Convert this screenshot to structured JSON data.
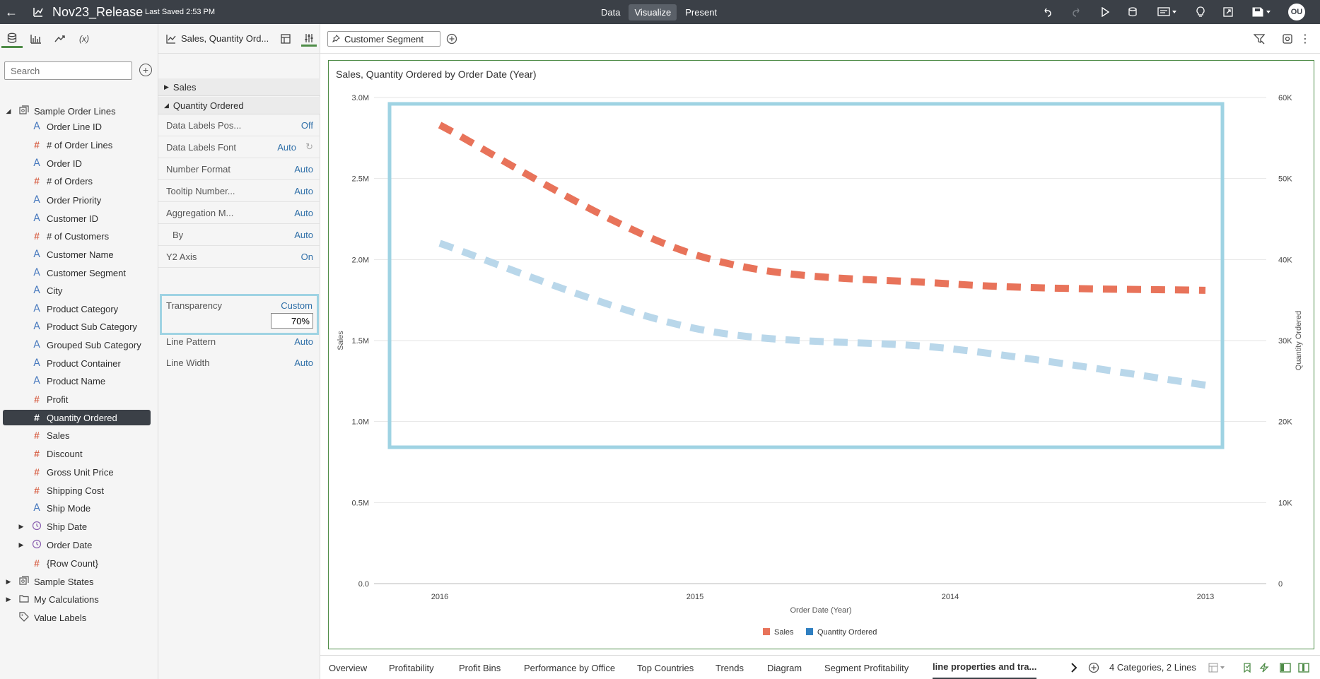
{
  "topbar": {
    "title": "Nov23_Release",
    "last_saved": "Last Saved 2:53 PM",
    "modes": [
      "Data",
      "Visualize",
      "Present"
    ],
    "active_mode": "Visualize",
    "avatar": "OU"
  },
  "left_panel": {
    "search_placeholder": "Search",
    "tree": [
      {
        "label": "Sample Order Lines",
        "kind": "dataset",
        "level": 0,
        "caret": "open"
      },
      {
        "label": "Order Line ID",
        "kind": "attr",
        "level": 1
      },
      {
        "label": "# of Order Lines",
        "kind": "meas",
        "level": 1
      },
      {
        "label": "Order ID",
        "kind": "attr",
        "level": 1
      },
      {
        "label": "# of Orders",
        "kind": "meas",
        "level": 1
      },
      {
        "label": "Order Priority",
        "kind": "attr",
        "level": 1
      },
      {
        "label": "Customer ID",
        "kind": "attr",
        "level": 1
      },
      {
        "label": "# of Customers",
        "kind": "meas",
        "level": 1
      },
      {
        "label": "Customer Name",
        "kind": "attr",
        "level": 1
      },
      {
        "label": "Customer Segment",
        "kind": "attr",
        "level": 1
      },
      {
        "label": "City",
        "kind": "attr",
        "level": 1
      },
      {
        "label": "Product Category",
        "kind": "attr",
        "level": 1
      },
      {
        "label": "Product Sub Category",
        "kind": "attr",
        "level": 1
      },
      {
        "label": "Grouped Sub Category",
        "kind": "attr",
        "level": 1
      },
      {
        "label": "Product Container",
        "kind": "attr",
        "level": 1
      },
      {
        "label": "Product Name",
        "kind": "attr",
        "level": 1
      },
      {
        "label": "Profit",
        "kind": "meas",
        "level": 1
      },
      {
        "label": "Quantity Ordered",
        "kind": "meas",
        "level": 1,
        "selected": true
      },
      {
        "label": "Sales",
        "kind": "meas",
        "level": 1
      },
      {
        "label": "Discount",
        "kind": "meas",
        "level": 1
      },
      {
        "label": "Gross Unit Price",
        "kind": "meas",
        "level": 1
      },
      {
        "label": "Shipping Cost",
        "kind": "meas",
        "level": 1
      },
      {
        "label": "Ship Mode",
        "kind": "attr",
        "level": 1
      },
      {
        "label": "Ship Date",
        "kind": "date",
        "level": 1,
        "caret": "closed"
      },
      {
        "label": "Order Date",
        "kind": "date",
        "level": 1,
        "caret": "closed"
      },
      {
        "label": "{Row Count}",
        "kind": "meas",
        "level": 1
      },
      {
        "label": "Sample States",
        "kind": "dataset",
        "level": 0,
        "caret": "closed"
      },
      {
        "label": "My Calculations",
        "kind": "folder",
        "level": 0,
        "caret": "closed"
      },
      {
        "label": "Value Labels",
        "kind": "tag",
        "level": 0
      }
    ]
  },
  "properties": {
    "viz_name": "Sales, Quantity Ord...",
    "sections": {
      "sales": "Sales",
      "quantity": "Quantity Ordered"
    },
    "rows": [
      {
        "key": "Data Labels Pos...",
        "value": "Off"
      },
      {
        "key": "Data Labels Font",
        "value": "Auto"
      },
      {
        "key": "Number Format",
        "value": "Auto"
      },
      {
        "key": "Tooltip Number...",
        "value": "Auto"
      },
      {
        "key": "Aggregation M...",
        "value": "Auto"
      },
      {
        "key": "By",
        "value": "Auto"
      },
      {
        "key": "Y2 Axis",
        "value": "On"
      }
    ],
    "transparency": {
      "key": "Transparency",
      "value": "Custom",
      "input": "70%"
    },
    "rows_after": [
      {
        "key": "Line Pattern",
        "value": "Auto"
      },
      {
        "key": "Line Width",
        "value": "Auto"
      }
    ]
  },
  "filter_bar": {
    "pill": "Customer Segment"
  },
  "chart_data": {
    "type": "line",
    "title": "Sales, Quantity Ordered by Order Date (Year)",
    "xlabel": "Order Date (Year)",
    "ylabel": "Sales",
    "y2label": "Quantity Ordered",
    "categories": [
      "2016",
      "2015",
      "2014",
      "2013"
    ],
    "ylim": [
      0,
      3000000
    ],
    "y2lim": [
      0,
      60000
    ],
    "yticks": [
      "0.0",
      "0.5M",
      "1.0M",
      "1.5M",
      "2.0M",
      "2.5M",
      "3.0M"
    ],
    "y2ticks": [
      "0",
      "10K",
      "20K",
      "30K",
      "40K",
      "50K",
      "60K"
    ],
    "grid": true,
    "legend_position": "bottom",
    "series": [
      {
        "name": "Sales",
        "axis": "y",
        "color": "#e8735a",
        "values": [
          2830000,
          2030000,
          1850000,
          1810000
        ]
      },
      {
        "name": "Quantity Ordered",
        "axis": "y2",
        "color": "#b9d7ea",
        "legend_color": "#2f7fc1",
        "values": [
          42000,
          31500,
          29000,
          24500
        ]
      }
    ]
  },
  "bottom_tabs": [
    "Overview",
    "Profitability",
    "Profit Bins",
    "Performance by Office",
    "Top Countries",
    "Trends",
    "Diagram",
    "Segment Profitability",
    "line properties and tra..."
  ],
  "active_tab": "line properties and tra...",
  "status": "4 Categories, 2 Lines"
}
